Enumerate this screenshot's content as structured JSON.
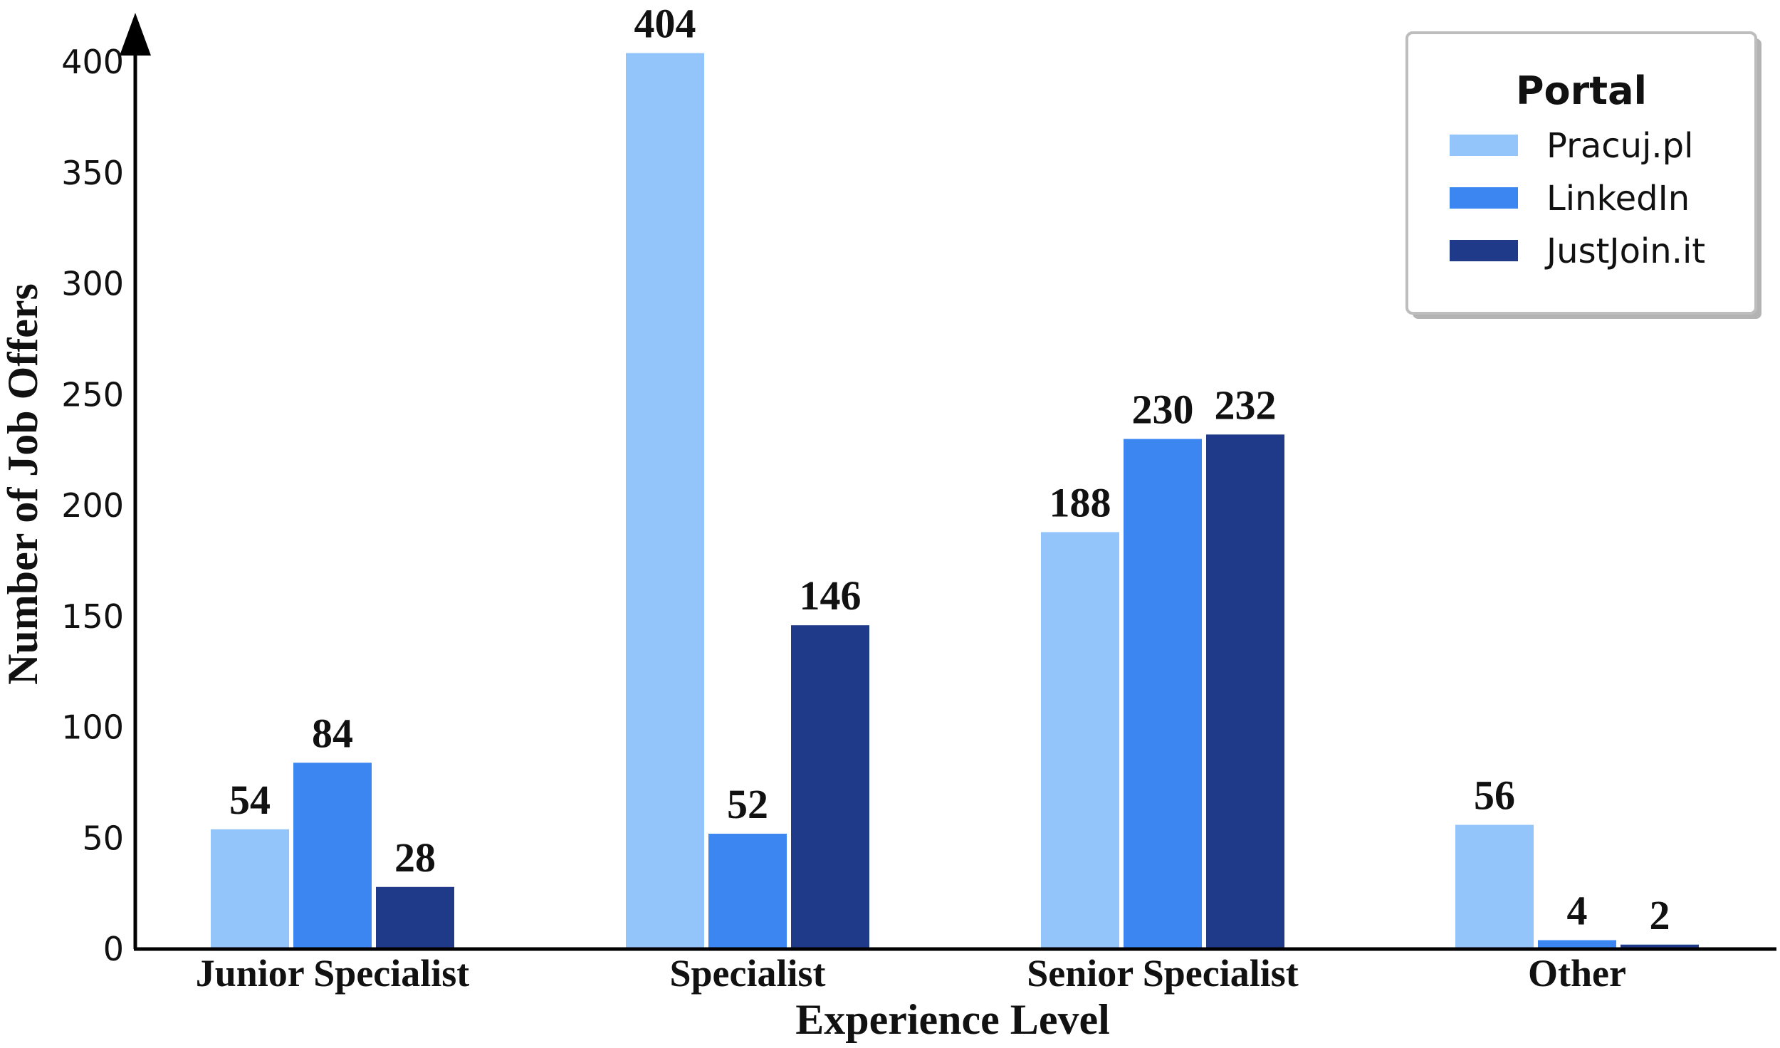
{
  "chart_data": {
    "type": "bar",
    "categories": [
      "Junior Specialist",
      "Specialist",
      "Senior Specialist",
      "Other"
    ],
    "series": [
      {
        "name": "Pracuj.pl",
        "values": [
          54,
          404,
          188,
          56
        ],
        "color": "#93c5fb"
      },
      {
        "name": "LinkedIn",
        "values": [
          84,
          52,
          230,
          4
        ],
        "color": "#3b86f0"
      },
      {
        "name": "JustJoin.it",
        "values": [
          28,
          146,
          232,
          2
        ],
        "color": "#1f3a88"
      }
    ],
    "xlabel": "Experience Level",
    "ylabel": "Number of Job Offers",
    "ylim": [
      0,
      400
    ],
    "yticks": [
      0,
      50,
      100,
      150,
      200,
      250,
      300,
      350,
      400
    ],
    "legend": {
      "title": "Portal",
      "position": "top-right"
    },
    "grid": false
  }
}
